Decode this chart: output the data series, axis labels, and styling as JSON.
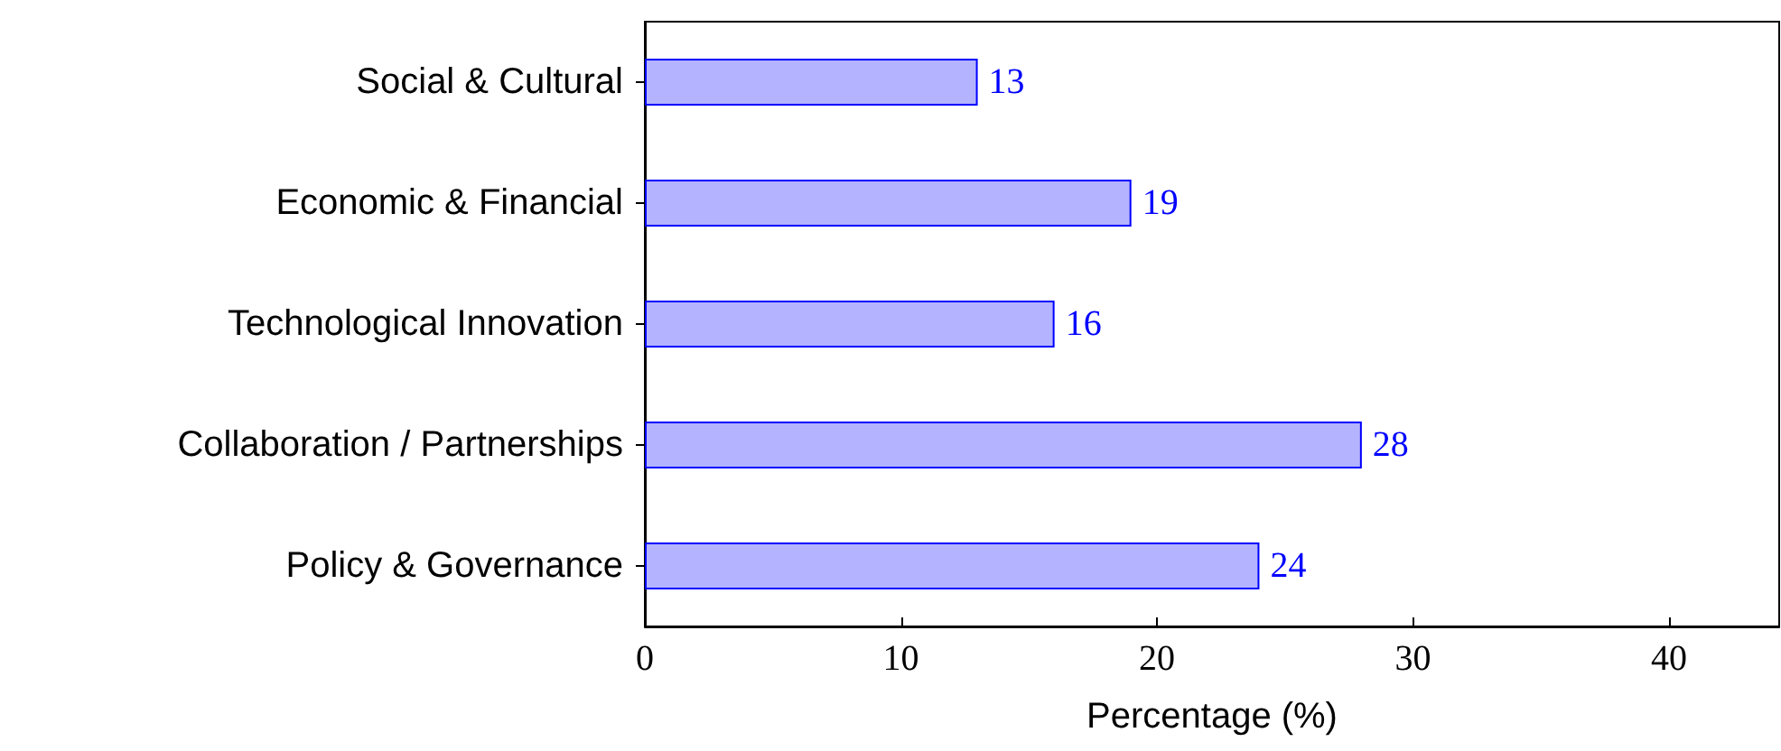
{
  "chart_data": {
    "type": "bar",
    "orientation": "horizontal",
    "xlabel": "Percentage (%)",
    "categories": [
      "Social & Cultural",
      "Economic & Financial",
      "Technological Innovation",
      "Collaboration / Partnerships",
      "Policy & Governance"
    ],
    "values": [
      13,
      19,
      16,
      28,
      24
    ],
    "color": "#b3b3ff",
    "xlim": [
      0,
      44.3
    ],
    "xticks": [
      0,
      10,
      20,
      30,
      40
    ],
    "grid": false,
    "data_labels": true
  }
}
